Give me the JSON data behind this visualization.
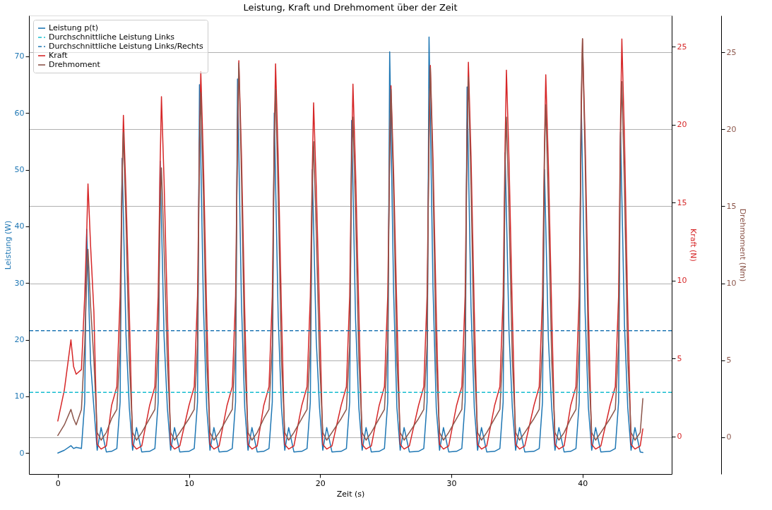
{
  "chart_data": {
    "type": "line",
    "title": "Leistung, Kraft und Drehmoment über der Zeit",
    "xlabel": "Zeit (s)",
    "ylabel": "Leistung (W)",
    "y2label": "Kraft (N)",
    "y3label": "Drehmoment (Nm)",
    "x": [
      0,
      0.5,
      1.0,
      1.2,
      1.4,
      1.8,
      2.05,
      2.2,
      2.3,
      2.5,
      2.75,
      3.0,
      3.3,
      3.7,
      4.1,
      4.5,
      4.75,
      4.9,
      5.0,
      5.2,
      5.45,
      5.7,
      6.0,
      6.4,
      7.0,
      7.4,
      7.65,
      7.8,
      7.9,
      8.1,
      8.35,
      8.6,
      8.9,
      9.3,
      10.0,
      10.4,
      10.65,
      10.8,
      10.9,
      11.1,
      11.35,
      11.6,
      11.9,
      12.3,
      12.9,
      13.3,
      13.55,
      13.7,
      13.8,
      14.0,
      14.25,
      14.5,
      14.8,
      15.2,
      15.7,
      16.1,
      16.35,
      16.5,
      16.6,
      16.8,
      17.05,
      17.3,
      17.6,
      18.0,
      18.6,
      19.0,
      19.25,
      19.4,
      19.5,
      19.7,
      19.95,
      20.2,
      20.5,
      20.9,
      21.6,
      22.0,
      22.25,
      22.4,
      22.5,
      22.7,
      22.95,
      23.2,
      23.5,
      23.9,
      24.5,
      24.9,
      25.15,
      25.3,
      25.4,
      25.6,
      25.85,
      26.1,
      26.4,
      26.8,
      27.5,
      27.9,
      28.15,
      28.3,
      28.4,
      28.6,
      28.85,
      29.1,
      29.4,
      29.8,
      30.4,
      30.8,
      31.05,
      31.2,
      31.3,
      31.5,
      31.75,
      32.0,
      32.3,
      32.7,
      33.3,
      33.7,
      33.95,
      34.1,
      34.2,
      34.4,
      34.65,
      34.9,
      35.2,
      35.6,
      36.3,
      36.7,
      36.95,
      37.1,
      37.2,
      37.4,
      37.65,
      37.9,
      38.2,
      38.6,
      39.1,
      39.5,
      39.75,
      39.9,
      40.0,
      40.2,
      40.45,
      40.7,
      41.0,
      41.4,
      42.1,
      42.5,
      42.75,
      42.9,
      43.0,
      43.2,
      43.45,
      43.7,
      44.0,
      44.4,
      44.6
    ],
    "series": [
      {
        "name": "Leistung p(t)",
        "color": "#1f77b4",
        "axis": "y",
        "values": [
          0,
          0.5,
          1.3,
          0.8,
          1.0,
          0.8,
          9,
          39.5,
          31.6,
          15.8,
          8,
          0.5,
          4.5,
          0.2,
          0.3,
          0.8,
          9,
          52,
          41.6,
          20.8,
          8,
          0.5,
          4.5,
          0.2,
          0.3,
          0.8,
          9,
          51.5,
          41.2,
          20.6,
          8,
          0.5,
          4.5,
          0.2,
          0.3,
          0.8,
          9,
          65,
          52,
          26,
          8,
          0.5,
          4.5,
          0.2,
          0.3,
          0.8,
          9,
          66,
          52.8,
          26.4,
          8,
          0.5,
          4.5,
          0.2,
          0.3,
          0.8,
          9,
          60,
          48,
          24,
          8,
          0.5,
          4.5,
          0.2,
          0.3,
          0.8,
          9,
          50,
          40,
          20,
          8,
          0.5,
          4.5,
          0.2,
          0.3,
          0.8,
          9,
          58.7,
          47,
          23.5,
          8,
          0.5,
          4.5,
          0.2,
          0.3,
          0.8,
          9,
          70.8,
          56.6,
          28.3,
          8,
          0.5,
          4.5,
          0.2,
          0.3,
          0.8,
          9,
          73.4,
          58.7,
          29.4,
          8,
          0.5,
          4.5,
          0.2,
          0.3,
          0.8,
          9,
          64.6,
          51.7,
          25.8,
          8,
          0.5,
          4.5,
          0.2,
          0.3,
          0.8,
          9,
          53,
          42.4,
          21.2,
          8,
          0.5,
          4.5,
          0.2,
          0.3,
          0.8,
          9,
          50,
          40,
          20,
          8,
          0.5,
          4.5,
          0.2,
          0.3,
          0.8,
          9,
          62,
          49.6,
          24.8,
          8,
          0.5,
          4.5,
          0.2,
          0.3,
          0.8,
          9,
          56.6,
          45.3,
          22.6,
          8,
          0.5,
          4.5,
          0.2,
          0.1
        ]
      },
      {
        "name": "Kraft",
        "color": "#d62728",
        "axis": "y2",
        "values": [
          1.0,
          3.0,
          6.2,
          4.5,
          4.0,
          4.3,
          9,
          13,
          16.2,
          12.2,
          8,
          -0.5,
          -0.8,
          -0.6,
          2.0,
          3.2,
          9,
          16.5,
          20.6,
          15.5,
          8,
          -0.5,
          -0.8,
          -0.6,
          2.0,
          3.2,
          9,
          17.4,
          21.8,
          16.4,
          8,
          -0.5,
          -0.8,
          -0.6,
          2.0,
          3.2,
          9,
          18.7,
          23.4,
          17.6,
          8,
          -0.5,
          -0.8,
          -0.6,
          2.0,
          3.2,
          9,
          19.3,
          24.1,
          18.1,
          8,
          -0.5,
          -0.8,
          -0.6,
          2.0,
          3.2,
          9,
          19.1,
          23.9,
          17.9,
          8,
          -0.5,
          -0.8,
          -0.6,
          2.0,
          3.2,
          9,
          17.1,
          21.4,
          16.1,
          8,
          -0.5,
          -0.8,
          -0.6,
          2.0,
          3.2,
          9,
          18.1,
          22.6,
          17.0,
          8,
          -0.5,
          -0.8,
          -0.6,
          2.0,
          3.2,
          9,
          18.0,
          22.5,
          16.9,
          8,
          -0.5,
          -0.8,
          -0.6,
          2.0,
          3.2,
          9,
          19.0,
          23.8,
          17.9,
          8,
          -0.5,
          -0.8,
          -0.6,
          2.0,
          3.2,
          9,
          19.2,
          24.0,
          18.0,
          8,
          -0.5,
          -0.8,
          -0.6,
          2.0,
          3.2,
          9,
          18.8,
          23.5,
          17.6,
          8,
          -0.5,
          -0.8,
          -0.6,
          2.0,
          3.2,
          9,
          18.6,
          23.2,
          17.4,
          8,
          -0.5,
          -0.8,
          -0.6,
          2.0,
          3.2,
          9,
          20.4,
          25.5,
          19.1,
          8,
          -0.5,
          -0.8,
          -0.6,
          2.0,
          3.2,
          9,
          20.4,
          25.5,
          19.1,
          8,
          -0.5,
          -0.8,
          -0.6,
          0.5
        ]
      },
      {
        "name": "Drehmoment",
        "color": "#8c564b",
        "axis": "y3",
        "values": [
          0.1,
          0.8,
          1.8,
          1.2,
          0.8,
          1.8,
          6,
          10.4,
          12.2,
          8.5,
          5,
          0.3,
          -0.2,
          0.3,
          1.2,
          1.8,
          6,
          16.8,
          19.8,
          13.9,
          5,
          0.3,
          -0.2,
          0.3,
          1.2,
          1.8,
          6,
          14.9,
          17.5,
          12.3,
          5,
          0.3,
          -0.2,
          0.3,
          1.2,
          1.8,
          6,
          19.0,
          22.4,
          15.7,
          5,
          0.3,
          -0.2,
          0.3,
          1.2,
          1.8,
          6,
          20.7,
          24.3,
          17.0,
          5,
          0.3,
          -0.2,
          0.3,
          1.2,
          1.8,
          6,
          19.2,
          22.6,
          15.8,
          5,
          0.3,
          -0.2,
          0.3,
          1.2,
          1.8,
          6,
          16.3,
          19.2,
          13.4,
          5,
          0.3,
          -0.2,
          0.3,
          1.2,
          1.8,
          6,
          17.7,
          20.8,
          14.6,
          5,
          0.3,
          -0.2,
          0.3,
          1.2,
          1.8,
          6,
          19.2,
          22.6,
          15.8,
          5,
          0.3,
          -0.2,
          0.3,
          1.2,
          1.8,
          6,
          20.4,
          24.0,
          16.8,
          5,
          0.3,
          -0.2,
          0.3,
          1.2,
          1.8,
          6,
          19.9,
          23.4,
          16.4,
          5,
          0.3,
          -0.2,
          0.3,
          1.2,
          1.8,
          6,
          17.7,
          20.8,
          14.6,
          5,
          0.3,
          -0.2,
          0.3,
          1.2,
          1.8,
          6,
          18.4,
          21.6,
          15.1,
          5,
          0.3,
          -0.2,
          0.3,
          1.2,
          1.8,
          6,
          22.0,
          25.9,
          18.1,
          5,
          0.3,
          -0.2,
          0.3,
          1.2,
          1.8,
          6,
          19.6,
          23.1,
          16.2,
          5,
          0.3,
          -0.2,
          0.3,
          2.5
        ]
      }
    ],
    "ref_lines": [
      {
        "axis": "y",
        "value": 10.7,
        "label": "Durchschnittliche Leistung Links",
        "color": "#17becf",
        "line_style": "dashed"
      },
      {
        "axis": "y",
        "value": 21.6,
        "label": "Durchschnittliche Leistung Links/Rechts",
        "color": "#1f77b4",
        "line_style": "dashed"
      }
    ],
    "xlim": [
      -2.2,
      46.8
    ],
    "xticks": [
      0,
      10,
      20,
      30,
      40
    ],
    "ylim": [
      -3.7,
      77.2
    ],
    "yticks": [
      0,
      10,
      20,
      30,
      40,
      50,
      60,
      70
    ],
    "y2lim": [
      -2.4,
      27.0
    ],
    "y2ticks": [
      0,
      5,
      10,
      15,
      20,
      25
    ],
    "y3lim": [
      -2.4,
      27.4
    ],
    "y3ticks": [
      0,
      5,
      10,
      15,
      20,
      25
    ],
    "grid": "y",
    "legend": "top left",
    "line_style": "solid"
  }
}
